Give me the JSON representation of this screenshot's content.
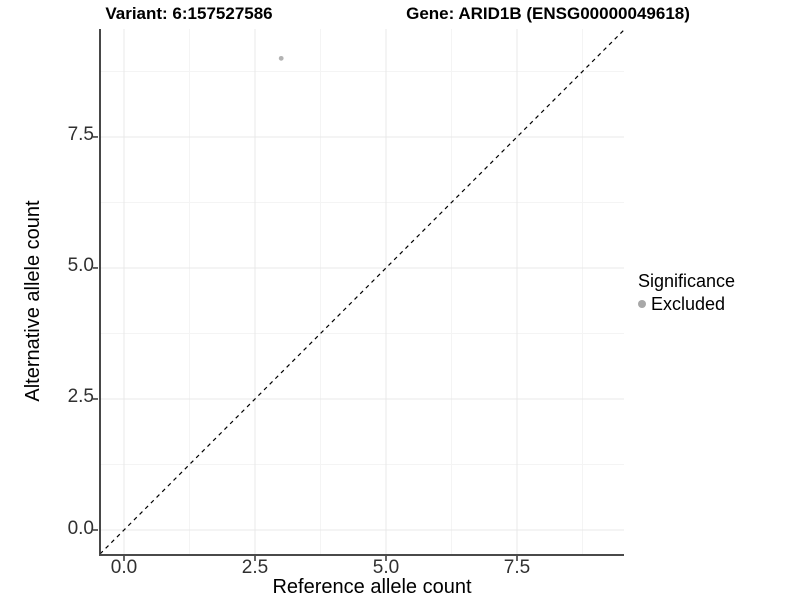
{
  "chart_data": {
    "type": "scatter",
    "titles": {
      "left": "Variant: 6:157527586",
      "right": "Gene: ARID1B (ENSG00000049618)"
    },
    "xlabel": "Reference allele count",
    "ylabel": "Alternative allele count",
    "xlim": [
      -0.458,
      9.542
    ],
    "ylim": [
      -0.458,
      9.56
    ],
    "x_ticks": [
      0,
      2.5,
      5,
      7.5
    ],
    "y_ticks": [
      0,
      2.5,
      5,
      7.5
    ],
    "x_tick_labels": [
      "0.0",
      "2.5",
      "5.0",
      "7.5"
    ],
    "y_tick_labels": [
      "0.0",
      "2.5",
      "5.0",
      "7.5"
    ],
    "x_minor_ticks": [
      1.25,
      3.75,
      6.25,
      8.75
    ],
    "y_minor_ticks": [
      1.25,
      3.75,
      6.25,
      8.75
    ],
    "grid": true,
    "legend_position": "right",
    "points": [
      {
        "x": 3,
        "y": 9,
        "significance": "Excluded"
      }
    ],
    "identity_line": {
      "style": "dashed",
      "slope": 1,
      "intercept": 0,
      "color": "#000000"
    },
    "legend": {
      "title": "Significance",
      "entries": [
        {
          "label": "Excluded",
          "color": "#a8a8a8"
        }
      ]
    },
    "colors": {
      "point": "#b3b3b3",
      "grid_major": "#e9e9e9",
      "grid_minor": "#f4f4f4",
      "axis_line": "#333333",
      "bottom_axis_line": "#4a4a4a",
      "tick_mark": "#333333"
    }
  }
}
